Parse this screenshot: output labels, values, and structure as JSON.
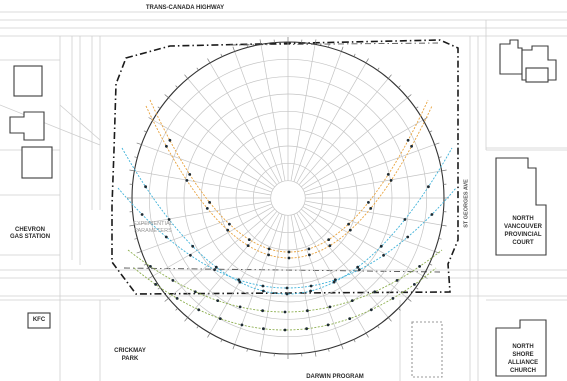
{
  "labels": {
    "highway": "TRANS-CANADA HIGHWAY",
    "chevron_1": "CHEVRON",
    "chevron_2": "GAS STATION",
    "kfc": "KFC",
    "crickmay_1": "CRICKMAY",
    "crickmay_2": "PARK",
    "court_1": "NORTH",
    "court_2": "VANCOUVER",
    "court_3": "PROVINCIAL",
    "court_4": "COURT",
    "church_1": "NORTH",
    "church_2": "SHORE",
    "church_3": "ALLIANCE",
    "church_4": "CHURCH",
    "st_georges": "ST GEORGES AVE",
    "site_1": "EXPERIENTIAL",
    "site_2": "PARAMETERS",
    "bottom_partial": "DARWIN PROGRAM"
  },
  "sunpath": {
    "arcs": [
      {
        "color": "#e8a23c",
        "role": "summer"
      },
      {
        "color": "#e8a23c",
        "role": "summer"
      },
      {
        "color": "#3fb2d9",
        "role": "equinox"
      },
      {
        "color": "#3fb2d9",
        "role": "equinox"
      },
      {
        "color": "#8cae4e",
        "role": "winter"
      },
      {
        "color": "#8cae4e",
        "role": "winter"
      }
    ],
    "dot_color": "#1e2b33"
  },
  "colors": {
    "block_outline": "#4a4a4a",
    "street_lines": "#c8c8c8",
    "property_line": "#1a1a1a",
    "grid": "#c9c9c9"
  }
}
